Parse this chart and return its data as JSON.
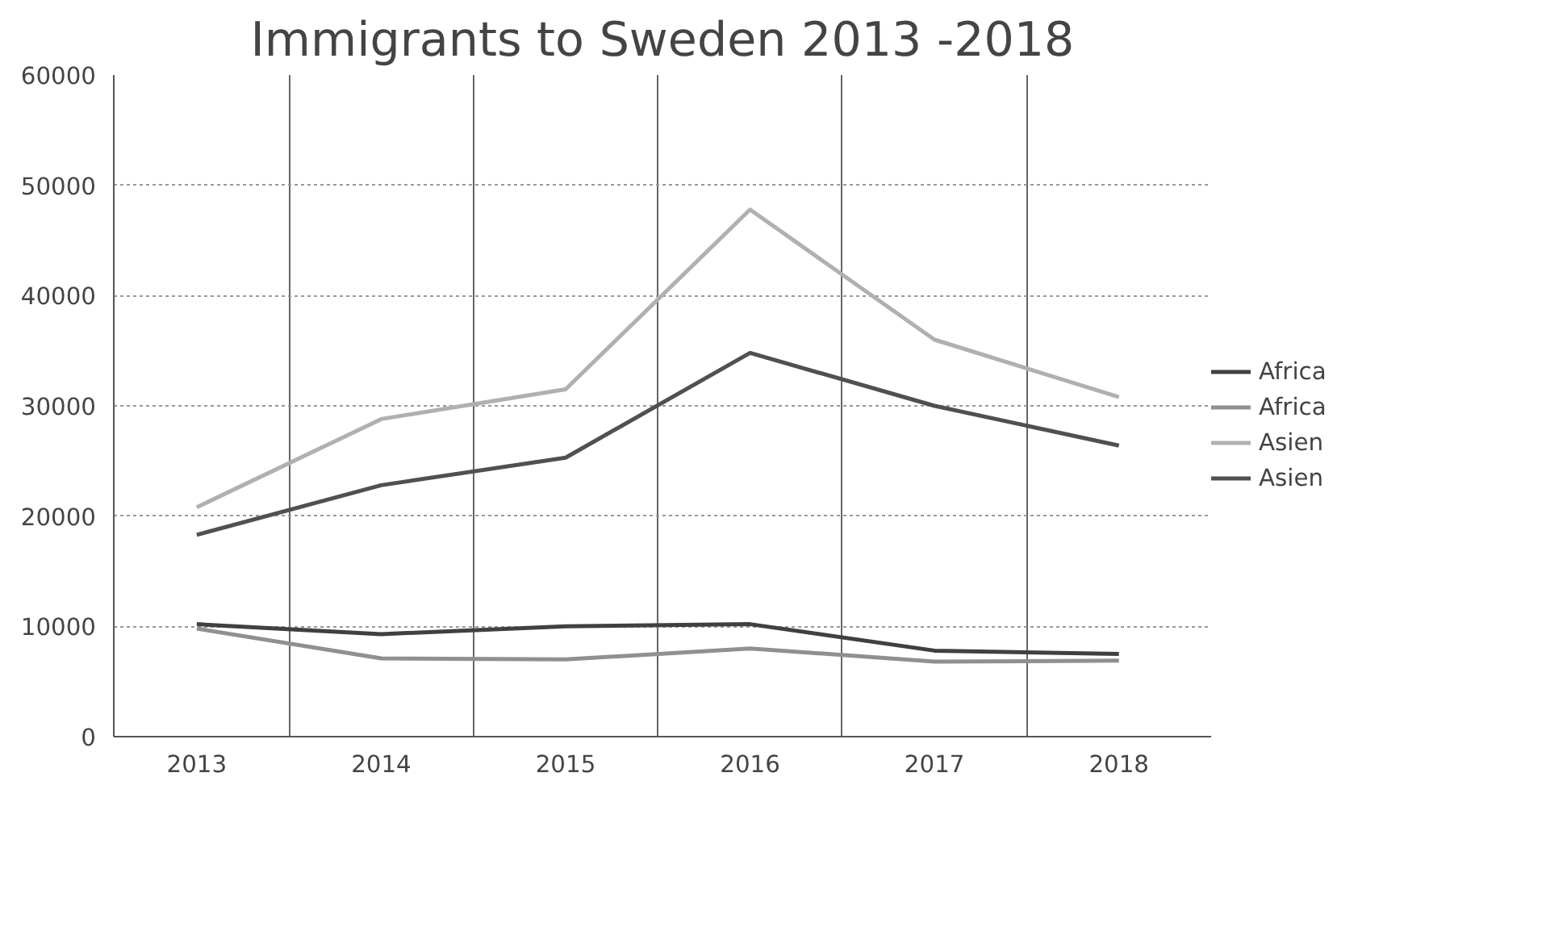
{
  "chart_data": {
    "type": "line",
    "title": "Immigrants to Sweden 2013 -2018",
    "categories": [
      "2013",
      "2014",
      "2015",
      "2016",
      "2017",
      "2018"
    ],
    "series": [
      {
        "name": "Africa",
        "color": "#404040",
        "values": [
          10200,
          9300,
          10000,
          10200,
          7800,
          7500
        ]
      },
      {
        "name": "Africa",
        "color": "#909090",
        "values": [
          9800,
          7100,
          7000,
          8000,
          6800,
          6900
        ]
      },
      {
        "name": "Asien",
        "color": "#b0b0b0",
        "values": [
          20800,
          28800,
          31500,
          47800,
          36000,
          30800
        ]
      },
      {
        "name": "Asien",
        "color": "#505050",
        "values": [
          18300,
          22800,
          25300,
          34800,
          30000,
          26400
        ]
      }
    ],
    "ylim": [
      0,
      60000
    ],
    "yticks": [
      0,
      10000,
      20000,
      30000,
      40000,
      50000,
      60000
    ],
    "grid": true,
    "legend": "right"
  }
}
